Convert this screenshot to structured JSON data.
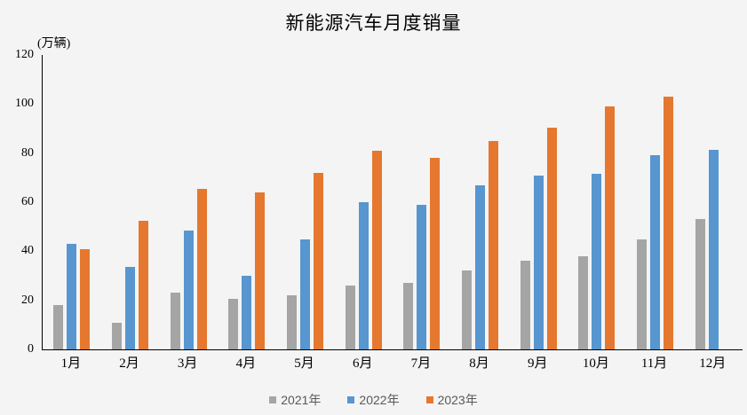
{
  "title": "新能源汽车月度销量",
  "y_axis_unit": "(万辆)",
  "colors": {
    "background": "#f4f4f5",
    "axis": "#000000",
    "legend_text": "#595959",
    "series_2021": "#a5a5a5",
    "series_2022": "#5796cf",
    "series_2023": "#e5782e"
  },
  "chart_data": {
    "type": "bar",
    "title": "新能源汽车月度销量",
    "ylabel": "(万辆)",
    "xlabel": "",
    "categories": [
      "1月",
      "2月",
      "3月",
      "4月",
      "5月",
      "6月",
      "7月",
      "8月",
      "9月",
      "10月",
      "11月",
      "12月"
    ],
    "series": [
      {
        "name": "2021年",
        "color": "#a5a5a5",
        "values": [
          18,
          11,
          23,
          20.5,
          22,
          26,
          27,
          32,
          36,
          38,
          45,
          53
        ]
      },
      {
        "name": "2022年",
        "color": "#5796cf",
        "values": [
          43,
          33.5,
          48.5,
          30,
          45,
          60,
          59,
          67,
          71,
          71.5,
          79,
          81.5
        ]
      },
      {
        "name": "2023年",
        "color": "#e5782e",
        "values": [
          41,
          52.5,
          65.5,
          64,
          72,
          81,
          78,
          85,
          90.5,
          99,
          103,
          null
        ]
      }
    ],
    "ylim": [
      0,
      120
    ],
    "yticks": [
      0,
      20,
      40,
      60,
      80,
      100,
      120
    ],
    "grid": false,
    "legend_position": "bottom"
  }
}
